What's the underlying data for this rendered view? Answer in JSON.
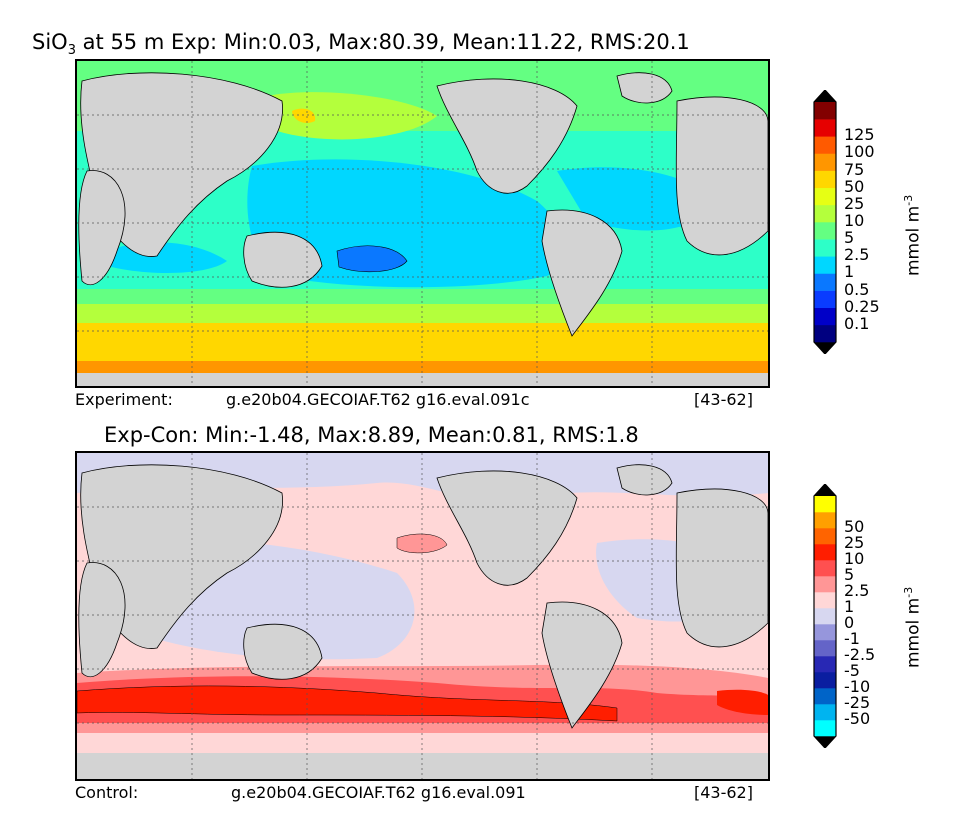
{
  "panel_top": {
    "title_main": "SiO",
    "title_sub": "3",
    "title_rest": " at 55 m Exp: Min:0.03, Max:80.39, Mean:11.22, RMS:20.1",
    "footer_left": "Experiment:",
    "footer_center": "g.e20b04.GECOIAF.T62 g16.eval.091c",
    "footer_right": "[43-62]",
    "colorbar": {
      "unit_main": "mmol m",
      "unit_sup": "-3",
      "colors": [
        "#000080",
        "#0000c8",
        "#0a3cff",
        "#0a78ff",
        "#00d7ff",
        "#2dffc8",
        "#64ff82",
        "#b4ff3c",
        "#e6ff14",
        "#ffd700",
        "#ff9600",
        "#ff5a00",
        "#e60000",
        "#820000"
      ],
      "over_color": "#000000",
      "under_color": "#000000",
      "labels": [
        "0.1",
        "0.25",
        "0.5",
        "1",
        "2.5",
        "5",
        "10",
        "25",
        "50",
        "75",
        "100",
        "125"
      ]
    }
  },
  "panel_bottom": {
    "title": "Exp-Con: Min:-1.48, Max:8.89, Mean:0.81, RMS:1.8",
    "footer_left": "Control:",
    "footer_center": "g.e20b04.GECOIAF.T62 g16.eval.091",
    "footer_right": "[43-62]",
    "colorbar": {
      "unit_main": "mmol m",
      "unit_sup": "-3",
      "colors": [
        "#00ffff",
        "#00b4f0",
        "#0064c8",
        "#0a1ea0",
        "#2828b4",
        "#6464c8",
        "#9696dc",
        "#d7d7f0",
        "#ffd7d7",
        "#ff9696",
        "#ff5050",
        "#ff1e00",
        "#ff6400",
        "#ffa000",
        "#ffff00"
      ],
      "over_color": "#000000",
      "under_color": "#000000",
      "labels": [
        "-50",
        "-25",
        "-10",
        "-5",
        "-2.5",
        "-1",
        "0",
        "1",
        "2.5",
        "5",
        "10",
        "25",
        "50"
      ]
    }
  },
  "chart_data": [
    {
      "type": "heatmap",
      "title": "SiO3 at 55 m Exp: Min:0.03, Max:80.39, Mean:11.22, RMS:20.1",
      "stats": {
        "min": 0.03,
        "max": 80.39,
        "mean": 11.22,
        "rms": 20.1
      },
      "colorbar_levels": [
        0.1,
        0.25,
        0.5,
        1,
        2.5,
        5,
        10,
        25,
        50,
        75,
        100,
        125
      ],
      "colorbar_label": "mmol m-3",
      "footer": [
        "Experiment:",
        "g.e20b04.GECOIAF.T62 g16.eval.091c",
        "[43-62]"
      ]
    },
    {
      "type": "heatmap",
      "title": "Exp-Con: Min:-1.48, Max:8.89, Mean:0.81, RMS:1.8",
      "stats": {
        "min": -1.48,
        "max": 8.89,
        "mean": 0.81,
        "rms": 1.8
      },
      "colorbar_levels": [
        -50,
        -25,
        -10,
        -5,
        -2.5,
        -1,
        0,
        1,
        2.5,
        5,
        10,
        25,
        50
      ],
      "colorbar_label": "mmol m-3",
      "footer": [
        "Control:",
        "g.e20b04.GECOIAF.T62 g16.eval.091",
        "[43-62]"
      ]
    }
  ]
}
